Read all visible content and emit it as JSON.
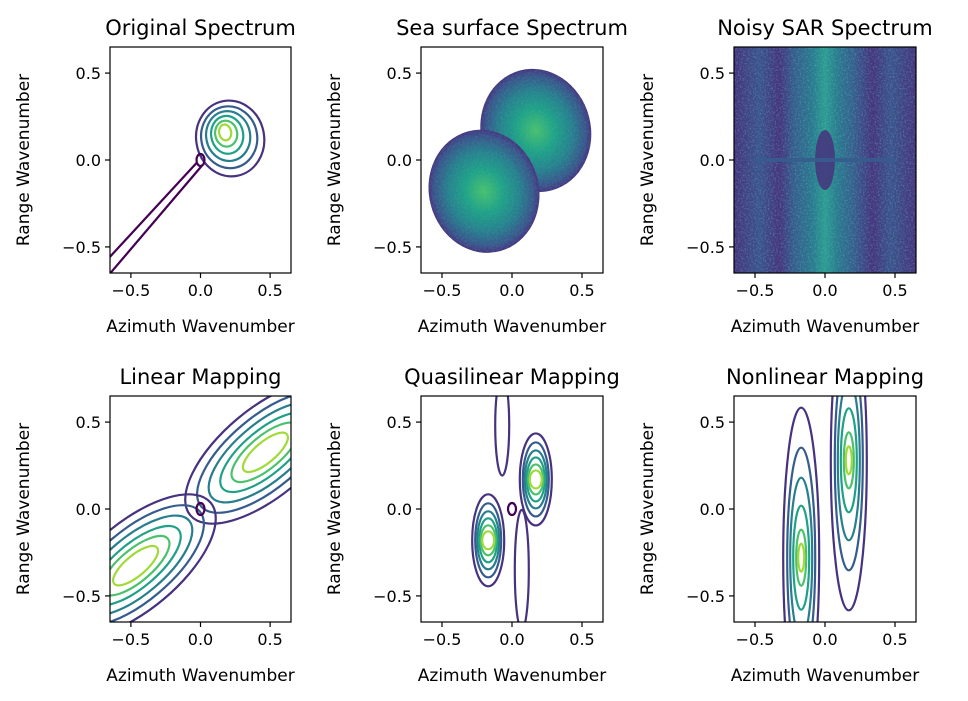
{
  "chart_data": [
    {
      "type": "contour",
      "title": "Original Spectrum",
      "xlabel": "Azimuth Wavenumber",
      "ylabel": "Range Wavenumber",
      "xlim": [
        -0.65,
        0.65
      ],
      "ylim": [
        -0.65,
        0.65
      ],
      "xticks": [
        -0.5,
        0.0,
        0.5
      ],
      "yticks": [
        -0.5,
        0.0,
        0.5
      ],
      "xticklabels": [
        "−0.5",
        "0.0",
        "0.5"
      ],
      "yticklabels": [
        "−0.5",
        "0.0",
        "0.5"
      ],
      "peaks": [
        {
          "x": 0.17,
          "y": 0.17
        }
      ],
      "levels": 7
    },
    {
      "type": "heatmap",
      "title": "Sea surface Spectrum",
      "xlabel": "Azimuth Wavenumber",
      "ylabel": "Range Wavenumber",
      "xlim": [
        -0.65,
        0.65
      ],
      "ylim": [
        -0.65,
        0.65
      ],
      "xticks": [
        -0.5,
        0.0,
        0.5
      ],
      "yticks": [
        -0.5,
        0.0,
        0.5
      ],
      "xticklabels": [
        "−0.5",
        "0.0",
        "0.5"
      ],
      "yticklabels": [
        "−0.5",
        "0.0",
        "0.5"
      ],
      "peaks": [
        {
          "x": 0.17,
          "y": 0.17
        },
        {
          "x": -0.2,
          "y": -0.18
        }
      ]
    },
    {
      "type": "heatmap",
      "title": "Noisy SAR Spectrum",
      "xlabel": "Azimuth Wavenumber",
      "ylabel": "Range Wavenumber",
      "xlim": [
        -0.65,
        0.65
      ],
      "ylim": [
        -0.65,
        0.65
      ],
      "xticks": [
        -0.5,
        0.0,
        0.5
      ],
      "yticks": [
        -0.5,
        0.0,
        0.5
      ],
      "xticklabels": [
        "−0.5",
        "0.0",
        "0.5"
      ],
      "yticklabels": [
        "−0.5",
        "0.0",
        "0.5"
      ]
    },
    {
      "type": "contour",
      "title": "Linear Mapping",
      "xlabel": "Azimuth Wavenumber",
      "ylabel": "Range Wavenumber",
      "xlim": [
        -0.65,
        0.65
      ],
      "ylim": [
        -0.65,
        0.65
      ],
      "xticks": [
        -0.5,
        0.0,
        0.5
      ],
      "yticks": [
        -0.5,
        0.0,
        0.5
      ],
      "xticklabels": [
        "−0.5",
        "0.0",
        "0.5"
      ],
      "yticklabels": [
        "−0.5",
        "0.0",
        "0.5"
      ],
      "peaks": [
        {
          "x": 0.38,
          "y": 0.28
        },
        {
          "x": -0.38,
          "y": -0.28
        }
      ],
      "levels": 7
    },
    {
      "type": "contour",
      "title": "Quasilinear Mapping",
      "xlabel": "Azimuth Wavenumber",
      "ylabel": "Range Wavenumber",
      "xlim": [
        -0.65,
        0.65
      ],
      "ylim": [
        -0.65,
        0.65
      ],
      "xticks": [
        -0.5,
        0.0,
        0.5
      ],
      "yticks": [
        -0.5,
        0.0,
        0.5
      ],
      "xticklabels": [
        "−0.5",
        "0.0",
        "0.5"
      ],
      "yticklabels": [
        "−0.5",
        "0.0",
        "0.5"
      ],
      "peaks": [
        {
          "x": 0.17,
          "y": 0.17
        },
        {
          "x": -0.17,
          "y": -0.18
        }
      ],
      "levels": 7
    },
    {
      "type": "contour",
      "title": "Nonlinear Mapping",
      "xlabel": "Azimuth Wavenumber",
      "ylabel": "Range Wavenumber",
      "xlim": [
        -0.65,
        0.65
      ],
      "ylim": [
        -0.65,
        0.65
      ],
      "xticks": [
        -0.5,
        0.0,
        0.5
      ],
      "yticks": [
        -0.5,
        0.0,
        0.5
      ],
      "xticklabels": [
        "−0.5",
        "0.0",
        "0.5"
      ],
      "yticklabels": [
        "−0.5",
        "0.0",
        "0.5"
      ],
      "peaks": [
        {
          "x": 0.17,
          "y": 0.28
        },
        {
          "x": -0.17,
          "y": -0.28
        }
      ],
      "levels": 6
    }
  ],
  "colors": {
    "viridis": [
      "#440154",
      "#46327e",
      "#365c8d",
      "#277f8e",
      "#1fa187",
      "#4ac16d",
      "#a0da39",
      "#fde725"
    ]
  }
}
